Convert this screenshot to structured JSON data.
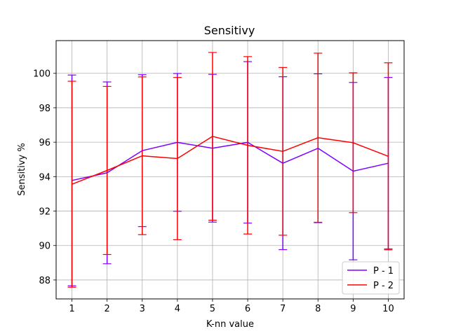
{
  "chart_data": {
    "type": "line",
    "title": "Sensitivy",
    "xlabel": "K-nn value",
    "ylabel": "Sensitivy %",
    "x": [
      1,
      2,
      3,
      4,
      5,
      6,
      7,
      8,
      9,
      10
    ],
    "x_tick_labels": [
      "1",
      "2",
      "3",
      "4",
      "5",
      "6",
      "7",
      "8",
      "9",
      "10"
    ],
    "xlim": [
      0.55,
      10.45
    ],
    "ylim": [
      86.9,
      101.9
    ],
    "y_ticks": [
      88,
      90,
      92,
      94,
      96,
      98,
      100
    ],
    "y_tick_labels": [
      "88",
      "90",
      "92",
      "94",
      "96",
      "98",
      "100"
    ],
    "grid": true,
    "legend_position": "lower right",
    "series": [
      {
        "name": "P - 1",
        "color": "#7f00ff",
        "values": [
          93.78,
          94.22,
          95.51,
          95.99,
          95.65,
          95.99,
          94.78,
          95.65,
          94.32,
          94.78
        ],
        "error": [
          6.12,
          5.28,
          4.41,
          4.0,
          4.29,
          4.69,
          5.02,
          4.32,
          5.15,
          4.98
        ]
      },
      {
        "name": "P - 2",
        "color": "#ff0000",
        "values": [
          93.56,
          94.36,
          95.21,
          95.05,
          96.34,
          95.82,
          95.47,
          96.26,
          95.97,
          95.18
        ],
        "error": [
          5.98,
          4.88,
          4.58,
          4.71,
          4.87,
          5.15,
          4.87,
          4.91,
          4.06,
          5.43
        ]
      }
    ]
  }
}
